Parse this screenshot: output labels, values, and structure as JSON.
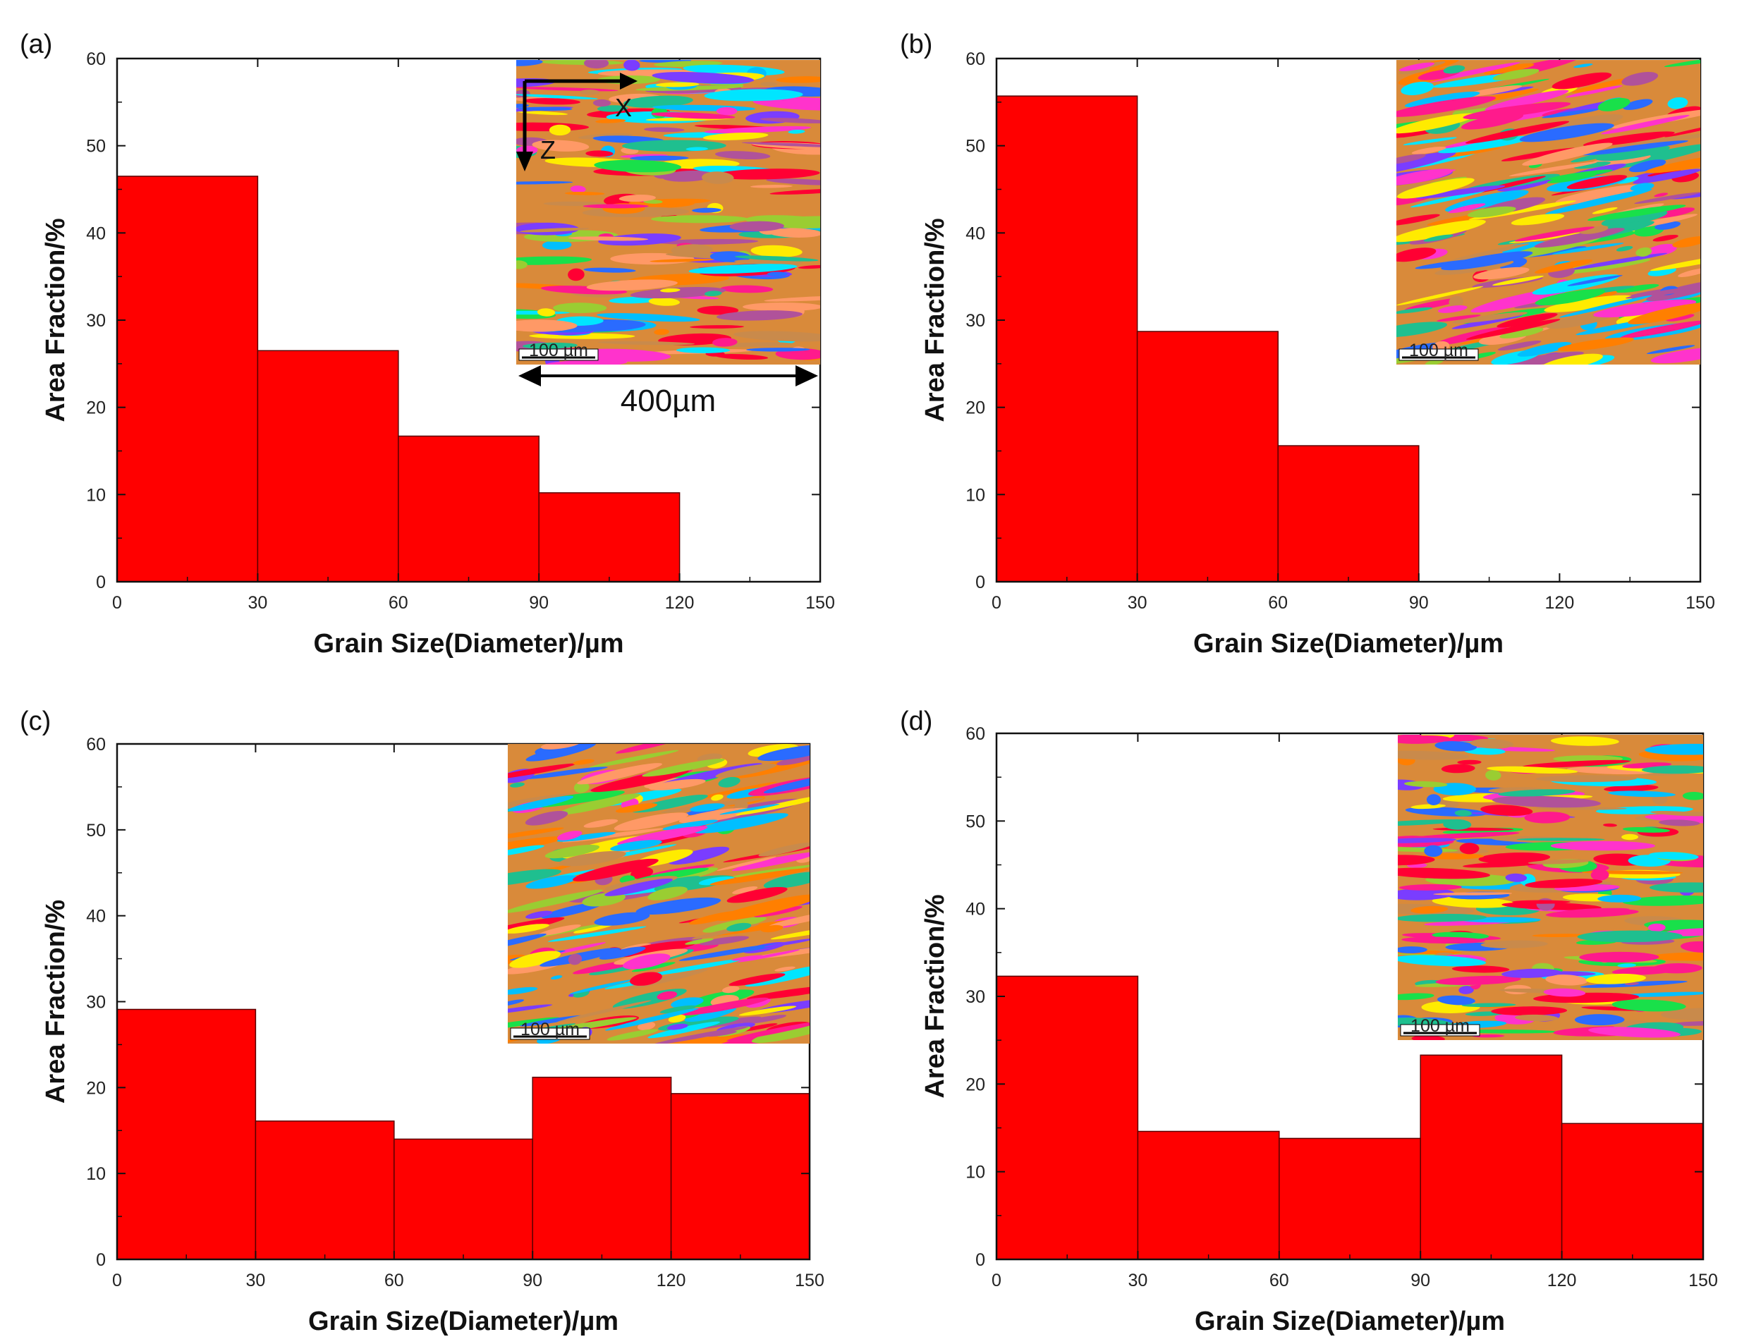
{
  "colors": {
    "bar": "#ff0000",
    "bar_stroke": "#5a0000",
    "axis": "#111111"
  },
  "charts": [
    {
      "panel_label": "(a)",
      "type": "bar",
      "bins": [
        [
          0,
          30
        ],
        [
          30,
          60
        ],
        [
          60,
          90
        ],
        [
          90,
          120
        ]
      ],
      "values": [
        46.5,
        26.5,
        16.7,
        10.2
      ],
      "xlabel": "Grain Size(Diameter)/µm",
      "ylabel": "Area Fraction/%",
      "xlim": [
        0,
        150
      ],
      "ylim": [
        0,
        60
      ],
      "xticks": [
        0,
        30,
        60,
        90,
        120,
        150
      ],
      "yticks": [
        0,
        10,
        20,
        30,
        40,
        50,
        60
      ],
      "inset": {
        "description_icon": "ebsd-orientation-map-icon",
        "scale_bar_text": "400µm",
        "axis_x_label": "X",
        "axis_z_label": "Z",
        "scale_hint": "100 µm"
      }
    },
    {
      "panel_label": "(b)",
      "type": "bar",
      "bins": [
        [
          0,
          30
        ],
        [
          30,
          60
        ],
        [
          60,
          90
        ]
      ],
      "values": [
        55.7,
        28.7,
        15.6
      ],
      "xlabel": "Grain Size(Diameter)/µm",
      "ylabel": "Area Fraction/%",
      "xlim": [
        0,
        150
      ],
      "ylim": [
        0,
        60
      ],
      "xticks": [
        0,
        30,
        60,
        90,
        120,
        150
      ],
      "yticks": [
        0,
        10,
        20,
        30,
        40,
        50,
        60
      ],
      "inset": {
        "description_icon": "ebsd-orientation-map-icon",
        "scale_hint": "100 µm"
      }
    },
    {
      "panel_label": "(c)",
      "type": "bar",
      "bins": [
        [
          0,
          30
        ],
        [
          30,
          60
        ],
        [
          60,
          90
        ],
        [
          90,
          120
        ],
        [
          120,
          150
        ]
      ],
      "values": [
        29.1,
        16.1,
        14.0,
        21.2,
        19.3
      ],
      "xlabel": "Grain Size(Diameter)/µm",
      "ylabel": "Area Fraction/%",
      "xlim": [
        0,
        150
      ],
      "ylim": [
        0,
        60
      ],
      "xticks": [
        0,
        30,
        60,
        90,
        120,
        150
      ],
      "yticks": [
        0,
        10,
        20,
        30,
        40,
        50,
        60
      ],
      "inset": {
        "description_icon": "ebsd-orientation-map-icon",
        "scale_hint": "100 µm"
      }
    },
    {
      "panel_label": "(d)",
      "type": "bar",
      "bins": [
        [
          0,
          30
        ],
        [
          30,
          60
        ],
        [
          60,
          90
        ],
        [
          90,
          120
        ],
        [
          120,
          150
        ]
      ],
      "values": [
        32.3,
        14.6,
        13.8,
        23.3,
        15.5
      ],
      "xlabel": "Grain Size(Diameter)/µm",
      "ylabel": "Area Fraction/%",
      "xlim": [
        0,
        150
      ],
      "ylim": [
        0,
        60
      ],
      "xticks": [
        0,
        30,
        60,
        90,
        120,
        150
      ],
      "yticks": [
        0,
        10,
        20,
        30,
        40,
        50,
        60
      ],
      "inset": {
        "description_icon": "ebsd-orientation-map-icon",
        "scale_hint": "100 µm"
      }
    }
  ],
  "chart_data": [
    {
      "type": "bar",
      "title": "(a)",
      "categories": [
        "0-30",
        "30-60",
        "60-90",
        "90-120"
      ],
      "values": [
        46.5,
        26.5,
        16.7,
        10.2
      ],
      "xlabel": "Grain Size(Diameter)/µm",
      "ylabel": "Area Fraction/%",
      "xlim": [
        0,
        150
      ],
      "ylim": [
        0,
        60
      ]
    },
    {
      "type": "bar",
      "title": "(b)",
      "categories": [
        "0-30",
        "30-60",
        "60-90"
      ],
      "values": [
        55.7,
        28.7,
        15.6
      ],
      "xlabel": "Grain Size(Diameter)/µm",
      "ylabel": "Area Fraction/%",
      "xlim": [
        0,
        150
      ],
      "ylim": [
        0,
        60
      ]
    },
    {
      "type": "bar",
      "title": "(c)",
      "categories": [
        "0-30",
        "30-60",
        "60-90",
        "90-120",
        "120-150"
      ],
      "values": [
        29.1,
        16.1,
        14.0,
        21.2,
        19.3
      ],
      "xlabel": "Grain Size(Diameter)/µm",
      "ylabel": "Area Fraction/%",
      "xlim": [
        0,
        150
      ],
      "ylim": [
        0,
        60
      ]
    },
    {
      "type": "bar",
      "title": "(d)",
      "categories": [
        "0-30",
        "30-60",
        "60-90",
        "90-120",
        "120-150"
      ],
      "values": [
        32.3,
        14.6,
        13.8,
        23.3,
        15.5
      ],
      "xlabel": "Grain Size(Diameter)/µm",
      "ylabel": "Area Fraction/%",
      "xlim": [
        0,
        150
      ],
      "ylim": [
        0,
        60
      ]
    }
  ]
}
